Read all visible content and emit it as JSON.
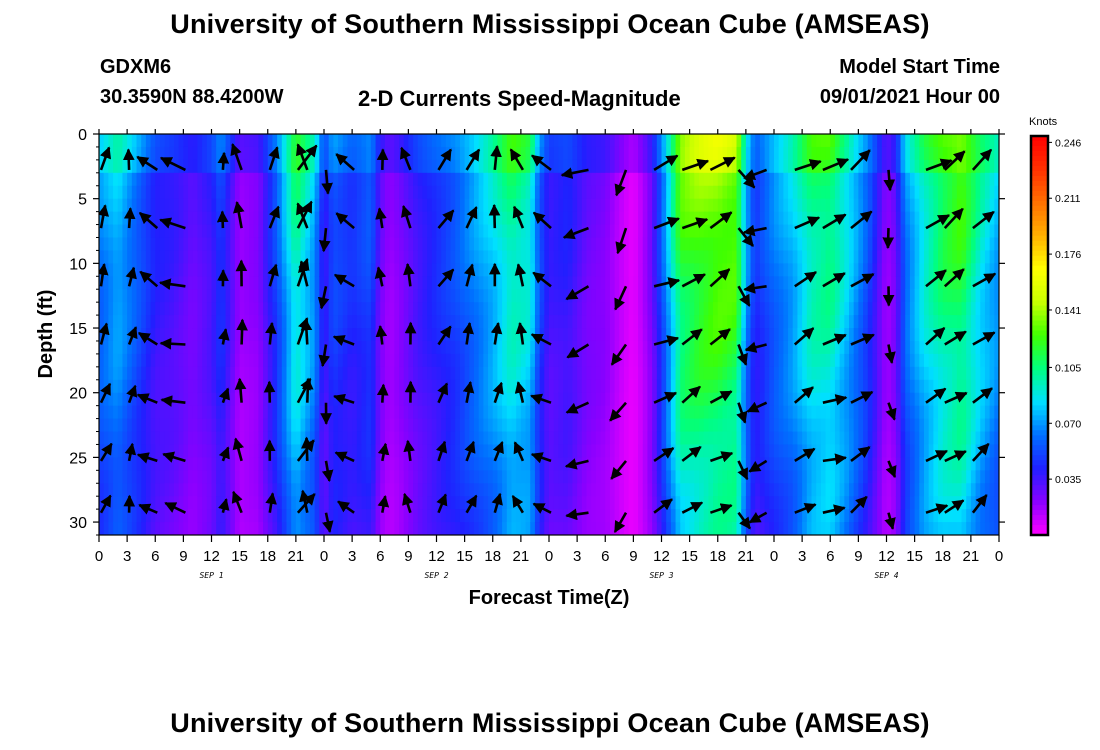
{
  "page": {
    "title_top": "University of Southern Mississippi Ocean Cube (AMSEAS)",
    "title_bottom": "University of Southern Mississippi Ocean Cube (AMSEAS)",
    "station_id": "GDXM6",
    "coordinates": "30.3590N  88.4200W",
    "subtitle": "2-D Currents Speed-Magnitude",
    "model_start_label": "Model Start Time",
    "model_start_value": "09/01/2021 Hour 00"
  },
  "chart_data": {
    "type": "heatmap",
    "title": "2-D Currents Speed-Magnitude",
    "xlabel": "Forecast Time(Z)",
    "ylabel": "Depth (ft)",
    "x_ticks": [
      "0",
      "3",
      "6",
      "9",
      "12",
      "15",
      "18",
      "21",
      "0",
      "3",
      "6",
      "9",
      "12",
      "15",
      "18",
      "21",
      "0",
      "3",
      "6",
      "9",
      "12",
      "15",
      "18",
      "21",
      "0",
      "3",
      "6",
      "9",
      "12",
      "15",
      "18",
      "21",
      "0"
    ],
    "day_labels": [
      "SEP 1",
      "SEP 2",
      "SEP 3",
      "SEP 4"
    ],
    "y_ticks": [
      0,
      5,
      10,
      15,
      20,
      25,
      30
    ],
    "ylim": [
      0,
      31
    ],
    "y_inverted": true,
    "colorbar": {
      "unit": "Knots",
      "ticks": [
        "0.246",
        "0.211",
        "0.176",
        "0.141",
        "0.105",
        "0.070",
        "0.035"
      ],
      "range": [
        0,
        0.25
      ],
      "colors": [
        "#ff00ff",
        "#8a00ff",
        "#2020ff",
        "#0070ff",
        "#00e0ff",
        "#00ff80",
        "#40ff00",
        "#c8ff00",
        "#ffff00",
        "#ffb000",
        "#ff7000",
        "#ff3000",
        "#ff0000"
      ]
    },
    "arrow_depths": [
      2,
      6.5,
      11,
      15.5,
      20,
      24.5,
      28.5
    ],
    "speed_profile": [
      {
        "x": 0,
        "s": 0.07
      },
      {
        "x": 2,
        "s": 0.085
      },
      {
        "x": 4,
        "s": 0.065
      },
      {
        "x": 6,
        "s": 0.045
      },
      {
        "x": 8,
        "s": 0.04
      },
      {
        "x": 10,
        "s": 0.03
      },
      {
        "x": 12,
        "s": 0.04
      },
      {
        "x": 13,
        "s": 0.055
      },
      {
        "x": 15,
        "s": 0.02
      },
      {
        "x": 17,
        "s": 0.025
      },
      {
        "x": 19,
        "s": 0.06
      },
      {
        "x": 21,
        "s": 0.11
      },
      {
        "x": 23,
        "s": 0.08
      },
      {
        "x": 24,
        "s": 0.04
      },
      {
        "x": 25,
        "s": 0.06
      },
      {
        "x": 27,
        "s": 0.05
      },
      {
        "x": 29,
        "s": 0.06
      },
      {
        "x": 30,
        "s": 0.03
      },
      {
        "x": 31,
        "s": 0.02
      },
      {
        "x": 32,
        "s": 0.025
      },
      {
        "x": 34,
        "s": 0.04
      },
      {
        "x": 36,
        "s": 0.05
      },
      {
        "x": 38,
        "s": 0.06
      },
      {
        "x": 40,
        "s": 0.075
      },
      {
        "x": 42,
        "s": 0.09
      },
      {
        "x": 44,
        "s": 0.11
      },
      {
        "x": 46,
        "s": 0.1
      },
      {
        "x": 47,
        "s": 0.06
      },
      {
        "x": 48,
        "s": 0.04
      },
      {
        "x": 50,
        "s": 0.045
      },
      {
        "x": 52,
        "s": 0.03
      },
      {
        "x": 54,
        "s": 0.025
      },
      {
        "x": 56,
        "s": 0.01
      },
      {
        "x": 57,
        "s": 0.005
      },
      {
        "x": 58,
        "s": 0.015
      },
      {
        "x": 59,
        "s": 0.03
      },
      {
        "x": 60,
        "s": 0.06
      },
      {
        "x": 62,
        "s": 0.13
      },
      {
        "x": 64,
        "s": 0.14
      },
      {
        "x": 66,
        "s": 0.145
      },
      {
        "x": 68,
        "s": 0.14
      },
      {
        "x": 69,
        "s": 0.08
      },
      {
        "x": 70,
        "s": 0.05
      },
      {
        "x": 72,
        "s": 0.07
      },
      {
        "x": 74,
        "s": 0.085
      },
      {
        "x": 76,
        "s": 0.11
      },
      {
        "x": 78,
        "s": 0.115
      },
      {
        "x": 80,
        "s": 0.09
      },
      {
        "x": 82,
        "s": 0.06
      },
      {
        "x": 83,
        "s": 0.04
      },
      {
        "x": 84,
        "s": 0.02
      },
      {
        "x": 85,
        "s": 0.03
      },
      {
        "x": 86,
        "s": 0.07
      },
      {
        "x": 88,
        "s": 0.1
      },
      {
        "x": 90,
        "s": 0.12
      },
      {
        "x": 92,
        "s": 0.13
      },
      {
        "x": 94,
        "s": 0.1
      },
      {
        "x": 96,
        "s": 0.08
      }
    ],
    "arrow_columns": [
      {
        "x": 0,
        "a": 70,
        "l": 0.7
      },
      {
        "x": 3,
        "a": 80,
        "l": 0.6
      },
      {
        "x": 6,
        "a": 150,
        "l": 0.7
      },
      {
        "x": 9,
        "a": 165,
        "l": 0.8
      },
      {
        "x": 13,
        "a": 80,
        "l": 0.5
      },
      {
        "x": 15,
        "a": 100,
        "l": 0.8
      },
      {
        "x": 18,
        "a": 80,
        "l": 0.7
      },
      {
        "x": 21,
        "a": 60,
        "l": 0.9
      },
      {
        "x": 22,
        "a": 100,
        "l": 0.8
      },
      {
        "x": 24,
        "a": 270,
        "l": 0.7
      },
      {
        "x": 27,
        "a": 150,
        "l": 0.7
      },
      {
        "x": 30,
        "a": 90,
        "l": 0.6
      },
      {
        "x": 33,
        "a": 100,
        "l": 0.7
      },
      {
        "x": 36,
        "a": 60,
        "l": 0.7
      },
      {
        "x": 39,
        "a": 70,
        "l": 0.7
      },
      {
        "x": 42,
        "a": 80,
        "l": 0.7
      },
      {
        "x": 45,
        "a": 110,
        "l": 0.7
      },
      {
        "x": 48,
        "a": 150,
        "l": 0.7
      },
      {
        "x": 52,
        "a": 200,
        "l": 0.8
      },
      {
        "x": 56,
        "a": 240,
        "l": 0.8
      },
      {
        "x": 59,
        "a": 25,
        "l": 0.8
      },
      {
        "x": 62,
        "a": 30,
        "l": 0.8
      },
      {
        "x": 65,
        "a": 30,
        "l": 0.8
      },
      {
        "x": 68,
        "a": 300,
        "l": 0.7
      },
      {
        "x": 71,
        "a": 200,
        "l": 0.7
      },
      {
        "x": 74,
        "a": 30,
        "l": 0.8
      },
      {
        "x": 77,
        "a": 20,
        "l": 0.8
      },
      {
        "x": 80,
        "a": 35,
        "l": 0.8
      },
      {
        "x": 84,
        "a": 280,
        "l": 0.6
      },
      {
        "x": 88,
        "a": 30,
        "l": 0.8
      },
      {
        "x": 90,
        "a": 35,
        "l": 0.8
      },
      {
        "x": 93,
        "a": 40,
        "l": 0.8
      }
    ]
  }
}
